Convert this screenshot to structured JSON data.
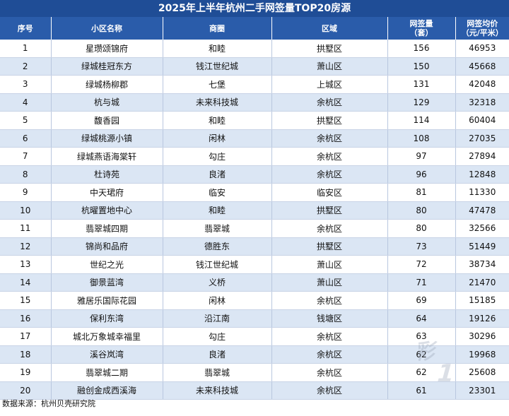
{
  "title": "2025年上半年杭州二手网签量TOP20房源",
  "headers": [
    "序号",
    "小区名称",
    "商圈",
    "区域",
    "网签量（套）",
    "网签均价（元/平米）"
  ],
  "rows": [
    [
      "1",
      "星瓒颂锦府",
      "和睦",
      "拱墅区",
      "156",
      "46953"
    ],
    [
      "2",
      "绿城桂冠东方",
      "钱江世纪城",
      "萧山区",
      "150",
      "45668"
    ],
    [
      "3",
      "绿城杨柳郡",
      "七堡",
      "上城区",
      "131",
      "42048"
    ],
    [
      "4",
      "杭与城",
      "未来科技城",
      "余杭区",
      "129",
      "32318"
    ],
    [
      "5",
      "馥香园",
      "和睦",
      "拱墅区",
      "114",
      "60404"
    ],
    [
      "6",
      "绿城桃源小镇",
      "闲林",
      "余杭区",
      "108",
      "27035"
    ],
    [
      "7",
      "绿城燕语海棠轩",
      "勾庄",
      "余杭区",
      "97",
      "27894"
    ],
    [
      "8",
      "杜诗苑",
      "良渚",
      "余杭区",
      "96",
      "12848"
    ],
    [
      "9",
      "中天珺府",
      "临安",
      "临安区",
      "81",
      "11330"
    ],
    [
      "10",
      "杭曜置地中心",
      "和睦",
      "拱墅区",
      "80",
      "47478"
    ],
    [
      "11",
      "翡翠城四期",
      "翡翠城",
      "余杭区",
      "80",
      "32566"
    ],
    [
      "12",
      "锦尚和品府",
      "德胜东",
      "拱墅区",
      "73",
      "51449"
    ],
    [
      "13",
      "世纪之光",
      "钱江世纪城",
      "萧山区",
      "72",
      "38734"
    ],
    [
      "14",
      "御景蓝湾",
      "义桥",
      "萧山区",
      "71",
      "21470"
    ],
    [
      "15",
      "雅居乐国际花园",
      "闲林",
      "余杭区",
      "69",
      "15185"
    ],
    [
      "16",
      "保利东湾",
      "沿江南",
      "钱塘区",
      "64",
      "19126"
    ],
    [
      "17",
      "城北万象城幸福里",
      "勾庄",
      "余杭区",
      "63",
      "30296"
    ],
    [
      "18",
      "溪谷岚湾",
      "良渚",
      "余杭区",
      "62",
      "19968"
    ],
    [
      "19",
      "翡翠城二期",
      "翡翠城",
      "余杭区",
      "62",
      "25608"
    ],
    [
      "20",
      "融创金成西溪海",
      "未来科技城",
      "余杭区",
      "61",
      "23301"
    ]
  ],
  "footer": "数据来源：杭州贝壳研究院",
  "colors": {
    "title_bg": "#1f4d96",
    "header_bg": "#2a5caa",
    "stripe": "#dbe6f4"
  }
}
